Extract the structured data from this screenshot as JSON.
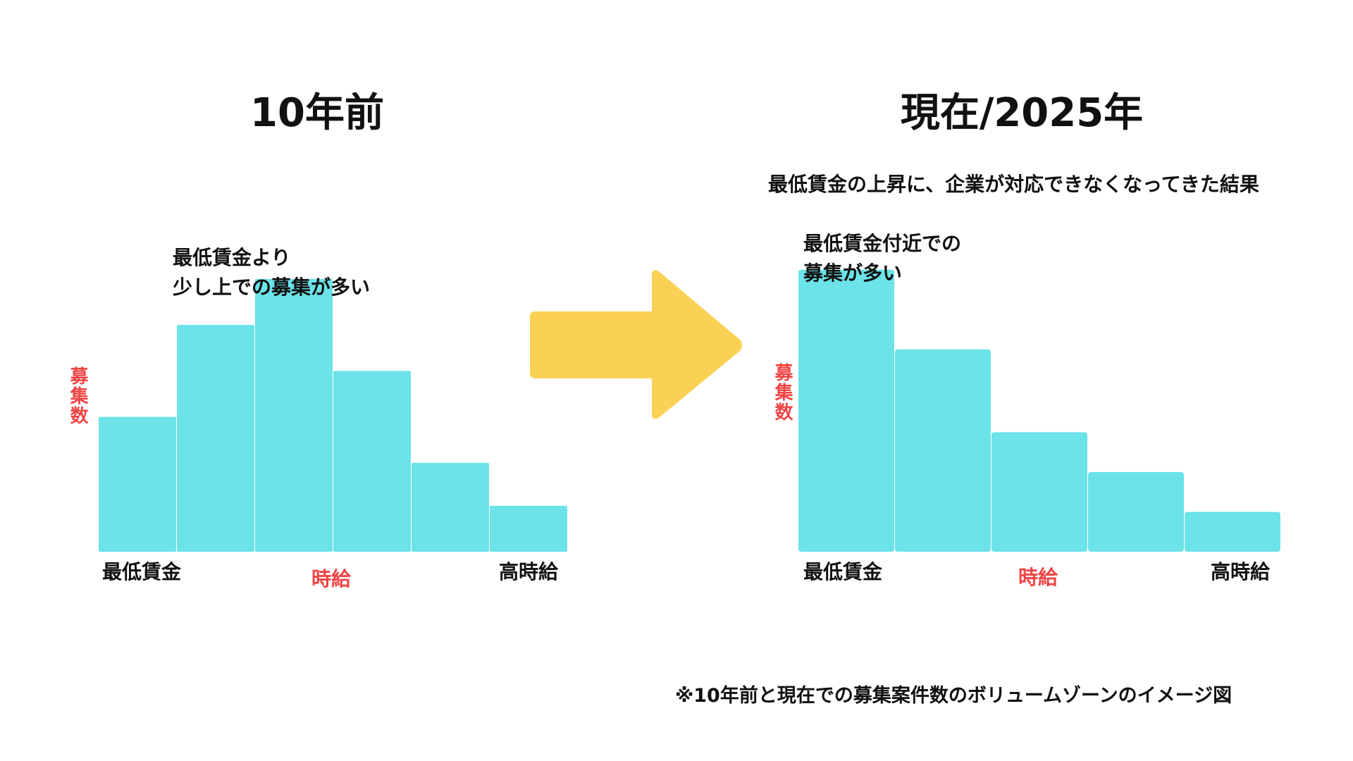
{
  "colors": {
    "bar": "#6be3e8",
    "arrow": "#fbd155",
    "accent_red": "#ef4444",
    "text": "#111111"
  },
  "left": {
    "title": "10年前",
    "annotation_lines": [
      "最低賃金より",
      "少し上での募集が多い"
    ],
    "ylabel": "募集数",
    "xlabel_low": "最低賃金",
    "xlabel_mid": "時給",
    "xlabel_high": "高時給"
  },
  "right": {
    "title": "現在/2025年",
    "subtitle": "最低賃金の上昇に、企業が対応できなくなってきた結果",
    "annotation_lines": [
      "最低賃金付近での",
      "募集が多い"
    ],
    "ylabel": "募集数",
    "xlabel_low": "最低賃金",
    "xlabel_mid": "時給",
    "xlabel_high": "高時給"
  },
  "arrow_icon": "right-arrow-icon",
  "footnote": "※10年前と現在での募集案件数のボリュームゾーンのイメージ図",
  "chart_data": [
    {
      "type": "bar",
      "title": "10年前",
      "categories": [
        "最低賃金",
        "",
        "",
        "",
        "",
        "高時給"
      ],
      "values": [
        44,
        74,
        89,
        59,
        29,
        15
      ],
      "xlabel": "時給",
      "ylabel": "募集数",
      "ylim": [
        0,
        100
      ],
      "grid": false
    },
    {
      "type": "bar",
      "title": "現在/2025年",
      "categories": [
        "最低賃金",
        "",
        "",
        "",
        "高時給"
      ],
      "values": [
        92,
        66,
        39,
        26,
        13
      ],
      "xlabel": "時給",
      "ylabel": "募集数",
      "ylim": [
        0,
        100
      ],
      "grid": false
    }
  ]
}
